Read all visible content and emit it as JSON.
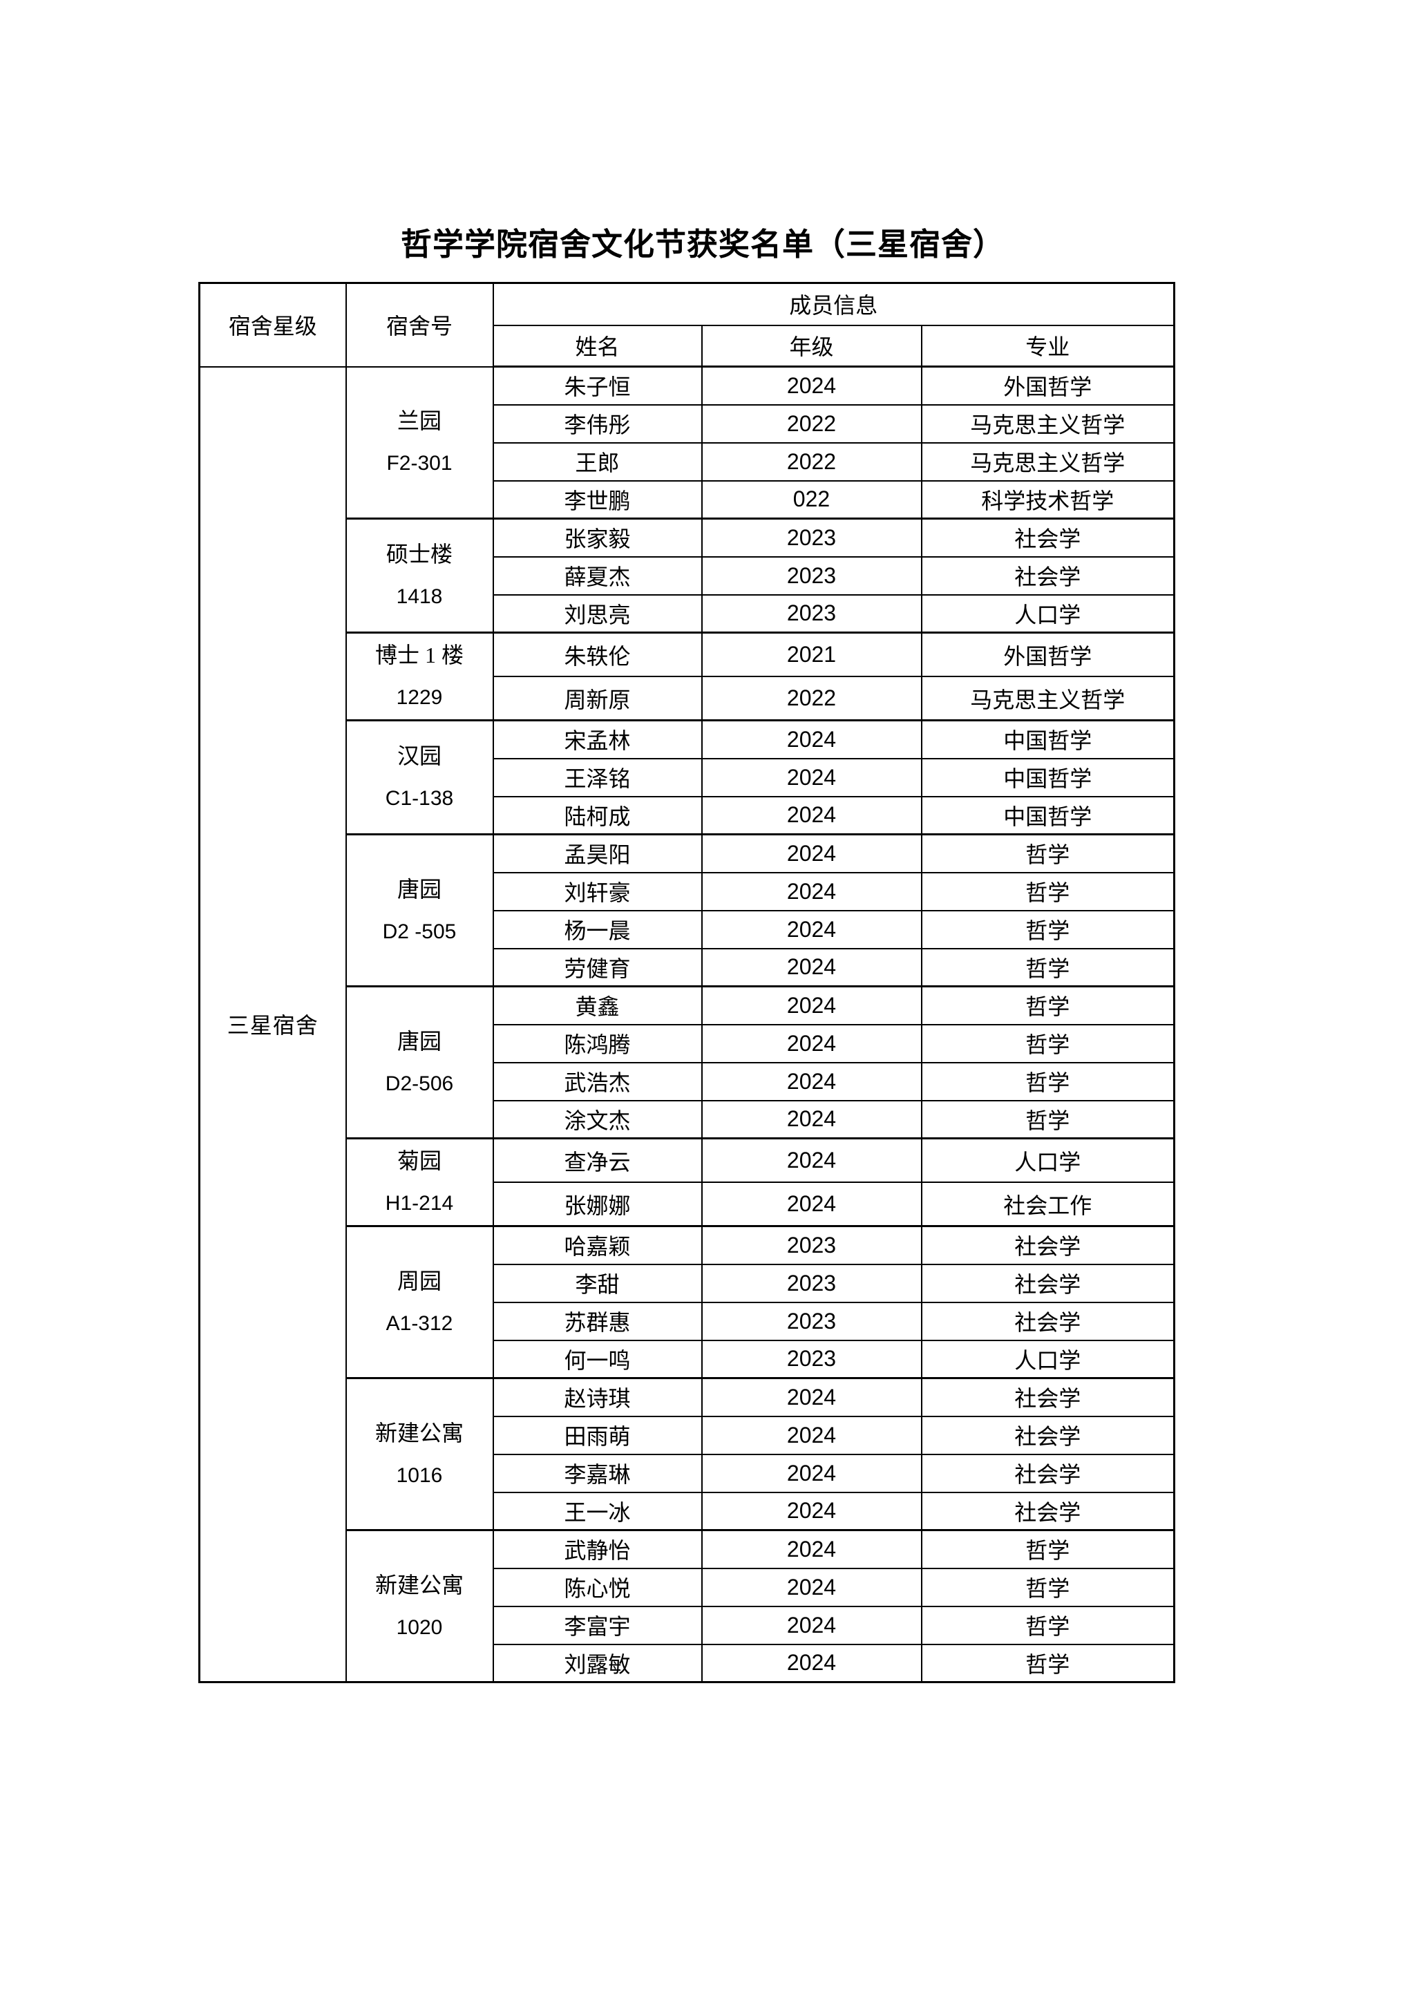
{
  "page": {
    "title": "哲学学院宿舍文化节获奖名单（三星宿舍）"
  },
  "table": {
    "headers": {
      "star_level": "宿舍星级",
      "dorm_number": "宿舍号",
      "member_info": "成员信息",
      "name": "姓名",
      "grade": "年级",
      "major": "专业"
    },
    "star_level": "三星宿舍",
    "groups": [
      {
        "dorm_name": "兰园",
        "dorm_number": "F2-301",
        "members": [
          {
            "name": "朱子恒",
            "grade": "2024",
            "major": "外国哲学"
          },
          {
            "name": "李伟彤",
            "grade": "2022",
            "major": "马克思主义哲学"
          },
          {
            "name": "王郎",
            "grade": "2022",
            "major": "马克思主义哲学"
          },
          {
            "name": "李世鹏",
            "grade": "022",
            "major": "科学技术哲学"
          }
        ]
      },
      {
        "dorm_name": "硕士楼",
        "dorm_number": "1418",
        "members": [
          {
            "name": "张家毅",
            "grade": "2023",
            "major": "社会学"
          },
          {
            "name": "薛夏杰",
            "grade": "2023",
            "major": "社会学"
          },
          {
            "name": "刘思亮",
            "grade": "2023",
            "major": "人口学"
          }
        ]
      },
      {
        "dorm_name": "博士 1 楼",
        "dorm_number": "1229",
        "members": [
          {
            "name": "朱轶伦",
            "grade": "2021",
            "major": "外国哲学"
          },
          {
            "name": "周新原",
            "grade": "2022",
            "major": "马克思主义哲学"
          }
        ]
      },
      {
        "dorm_name": "汉园",
        "dorm_number": "C1-138",
        "members": [
          {
            "name": "宋孟林",
            "grade": "2024",
            "major": "中国哲学"
          },
          {
            "name": "王泽铭",
            "grade": "2024",
            "major": "中国哲学"
          },
          {
            "name": "陆柯成",
            "grade": "2024",
            "major": "中国哲学"
          }
        ]
      },
      {
        "dorm_name": "唐园",
        "dorm_number": "D2 -505",
        "members": [
          {
            "name": "孟昊阳",
            "grade": "2024",
            "major": "哲学"
          },
          {
            "name": "刘轩豪",
            "grade": "2024",
            "major": "哲学"
          },
          {
            "name": "杨一晨",
            "grade": "2024",
            "major": "哲学"
          },
          {
            "name": "劳健育",
            "grade": "2024",
            "major": "哲学"
          }
        ]
      },
      {
        "dorm_name": "唐园",
        "dorm_number": "D2-506",
        "members": [
          {
            "name": "黄鑫",
            "grade": "2024",
            "major": "哲学"
          },
          {
            "name": "陈鸿腾",
            "grade": "2024",
            "major": "哲学"
          },
          {
            "name": "武浩杰",
            "grade": "2024",
            "major": "哲学"
          },
          {
            "name": "涂文杰",
            "grade": "2024",
            "major": "哲学"
          }
        ]
      },
      {
        "dorm_name": "菊园",
        "dorm_number": "H1-214",
        "members": [
          {
            "name": "查净云",
            "grade": "2024",
            "major": "人口学"
          },
          {
            "name": "张娜娜",
            "grade": "2024",
            "major": "社会工作"
          }
        ]
      },
      {
        "dorm_name": "周园",
        "dorm_number": "A1-312",
        "members": [
          {
            "name": "哈嘉颖",
            "grade": "2023",
            "major": "社会学"
          },
          {
            "name": "李甜",
            "grade": "2023",
            "major": "社会学"
          },
          {
            "name": "苏群惠",
            "grade": "2023",
            "major": "社会学"
          },
          {
            "name": "何一鸣",
            "grade": "2023",
            "major": "人口学"
          }
        ]
      },
      {
        "dorm_name": "新建公寓",
        "dorm_number": "1016",
        "members": [
          {
            "name": "赵诗琪",
            "grade": "2024",
            "major": "社会学"
          },
          {
            "name": "田雨萌",
            "grade": "2024",
            "major": "社会学"
          },
          {
            "name": "李嘉琳",
            "grade": "2024",
            "major": "社会学"
          },
          {
            "name": "王一冰",
            "grade": "2024",
            "major": "社会学"
          }
        ]
      },
      {
        "dorm_name": "新建公寓",
        "dorm_number": "1020",
        "members": [
          {
            "name": "武静怡",
            "grade": "2024",
            "major": "哲学"
          },
          {
            "name": "陈心悦",
            "grade": "2024",
            "major": "哲学"
          },
          {
            "name": "李富宇",
            "grade": "2024",
            "major": "哲学"
          },
          {
            "name": "刘露敏",
            "grade": "2024",
            "major": "哲学"
          }
        ]
      }
    ]
  }
}
